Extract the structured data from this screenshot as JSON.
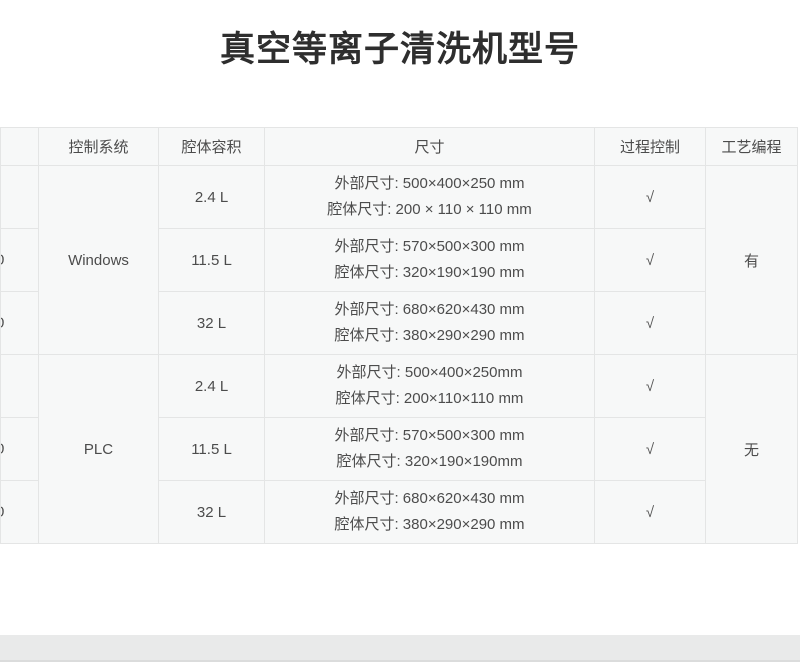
{
  "page": {
    "title": "真空等离子清洗机型号"
  },
  "colors": {
    "cell_background": "#f7f8f8",
    "border": "#e4e5e5",
    "text": "#4c4c4c",
    "title_text": "#2e2e2e",
    "bottom_bar": "#e9eaea"
  },
  "table": {
    "headers": [
      {
        "key": "model",
        "label": ""
      },
      {
        "key": "control_system",
        "label": "控制系统"
      },
      {
        "key": "chamber_volume",
        "label": "腔体容积"
      },
      {
        "key": "dimensions",
        "label": "尺寸"
      },
      {
        "key": "process_control",
        "label": "过程控制"
      },
      {
        "key": "process_programming",
        "label": "工艺编程"
      }
    ],
    "groups": [
      {
        "control_system": "Windows",
        "process_programming": "有",
        "rows": [
          {
            "model_fragment": "",
            "volume": "2.4 L",
            "outer_size": "外部尺寸: 500×400×250 mm",
            "chamber_size": "腔体尺寸: 200 × 110 × 110 mm",
            "process_control": "√"
          },
          {
            "model_fragment": "0",
            "volume": "11.5 L",
            "outer_size": "外部尺寸: 570×500×300 mm",
            "chamber_size": "腔体尺寸: 320×190×190 mm",
            "process_control": "√"
          },
          {
            "model_fragment": "0",
            "volume": "32 L",
            "outer_size": "外部尺寸: 680×620×430 mm",
            "chamber_size": "腔体尺寸: 380×290×290 mm",
            "process_control": "√"
          }
        ]
      },
      {
        "control_system": "PLC",
        "process_programming": "无",
        "rows": [
          {
            "model_fragment": "",
            "volume": "2.4 L",
            "outer_size": "外部尺寸: 500×400×250mm",
            "chamber_size": "腔体尺寸: 200×110×110 mm",
            "process_control": "√"
          },
          {
            "model_fragment": "0",
            "volume": "11.5 L",
            "outer_size": "外部尺寸: 570×500×300 mm",
            "chamber_size": "腔体尺寸: 320×190×190mm",
            "process_control": "√"
          },
          {
            "model_fragment": "0",
            "volume": "32 L",
            "outer_size": "外部尺寸: 680×620×430 mm",
            "chamber_size": "腔体尺寸: 380×290×290 mm",
            "process_control": "√"
          }
        ]
      }
    ]
  }
}
